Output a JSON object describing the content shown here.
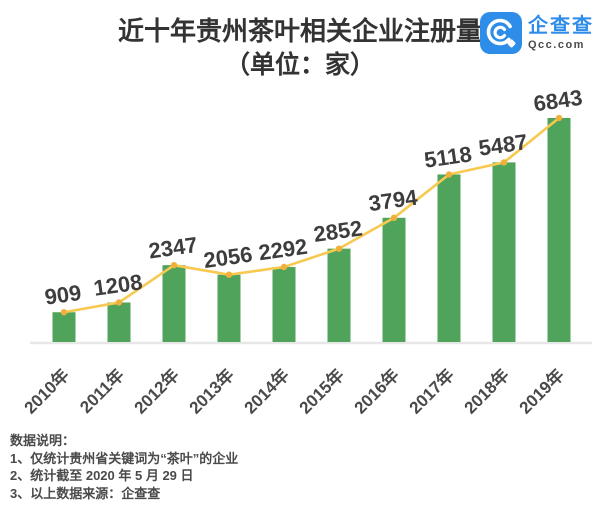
{
  "header": {
    "title_line1": "近十年贵州茶叶相关企业注册量",
    "title_line2": "（单位：家）",
    "logo": {
      "name_cn": "企查查",
      "domain": "Qcc.com",
      "color": "#2f8dea"
    }
  },
  "chart_data": {
    "type": "bar",
    "overlay": "line",
    "title": "近十年贵州茶叶相关企业注册量（单位：家）",
    "categories": [
      "2010年",
      "2011年",
      "2012年",
      "2013年",
      "2014年",
      "2015年",
      "2016年",
      "2017年",
      "2018年",
      "2019年"
    ],
    "values": [
      909,
      1208,
      2347,
      2056,
      2292,
      2852,
      3794,
      5118,
      5487,
      6843
    ],
    "xlabel": "",
    "ylabel": "",
    "ylim": [
      0,
      6843
    ],
    "grid": false,
    "legend": "none",
    "bar_color": "#4fa35a",
    "line_color": "#f8c950",
    "marker_color": "#f0b13c",
    "value_label_color": "#3d3d3d",
    "axis_label_color": "#4a4a4a",
    "baseline_color": "#e7e7e7"
  },
  "footer": {
    "heading": "数据说明：",
    "notes": [
      "1、仅统计贵州省关键词为“茶叶”的企业",
      "2、统计截至 2020 年 5 月 29 日",
      "3、以上数据来源：企查查"
    ]
  }
}
